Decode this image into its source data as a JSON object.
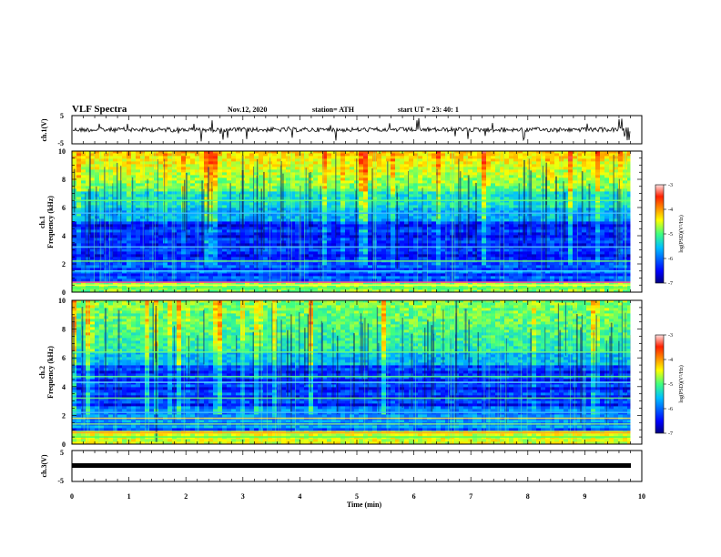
{
  "header": {
    "title": "VLF Spectra",
    "date": "Nov.12, 2020",
    "station": "station= ATH",
    "start": "start  UT  =   23: 40: 1"
  },
  "chart_data": [
    {
      "id": "ch1-waveform",
      "type": "line",
      "ylabel": "ch.1(V)",
      "ylim": [
        -5,
        5
      ],
      "yticks": [
        "5",
        "-5"
      ],
      "xlim": [
        0,
        10
      ]
    },
    {
      "id": "ch1-spectrogram",
      "type": "heatmap",
      "ylabel_top": "ch.1",
      "ylabel": "Frequency (kHz)",
      "ylim": [
        0,
        10
      ],
      "yticks": [
        "0",
        "2",
        "4",
        "6",
        "8",
        "10"
      ],
      "xlim": [
        0,
        9.8
      ],
      "colorbar": {
        "label": "log(PSD)(V²/Hz)",
        "range": [
          -7,
          -3
        ],
        "ticks": [
          "-3",
          "-4",
          "-5",
          "-6",
          "-7"
        ]
      }
    },
    {
      "id": "ch2-spectrogram",
      "type": "heatmap",
      "ylabel_top": "ch.2",
      "ylabel": "Frequency (kHz)",
      "ylim": [
        0,
        10
      ],
      "yticks": [
        "0",
        "2",
        "4",
        "6",
        "8",
        "10"
      ],
      "xlim": [
        0,
        9.8
      ],
      "colorbar": {
        "label": "log(PSD)(V²/Hz)",
        "range": [
          -7,
          -3
        ],
        "ticks": [
          "-3",
          "-4",
          "-5",
          "-6",
          "-7"
        ]
      }
    },
    {
      "id": "ch3-waveform",
      "type": "line",
      "ylabel": "ch.3(V)",
      "ylim": [
        -5,
        5
      ],
      "yticks": [
        "5",
        "-5"
      ],
      "xlim": [
        0,
        10
      ]
    }
  ],
  "xaxis": {
    "label": "Time (min)",
    "ticks": [
      "0",
      "1",
      "2",
      "3",
      "4",
      "5",
      "6",
      "7",
      "8",
      "9",
      "10"
    ],
    "range": [
      0,
      10
    ]
  }
}
